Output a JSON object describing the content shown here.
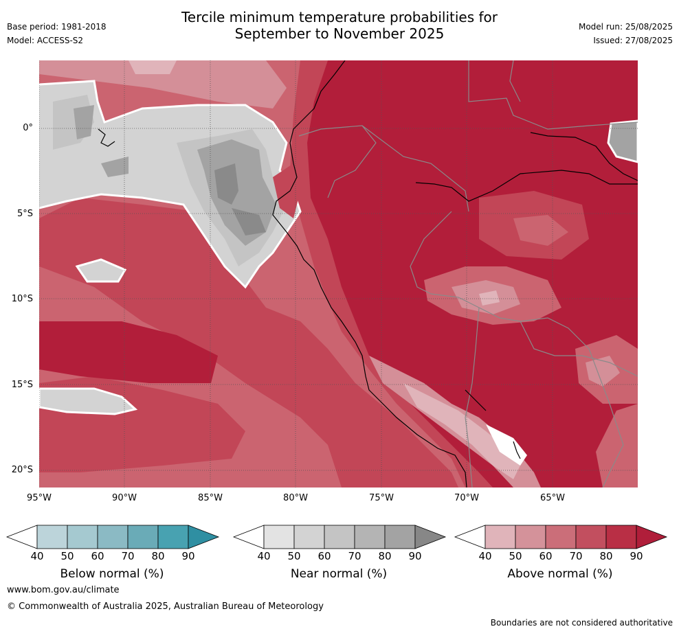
{
  "header": {
    "title_line1": "Tercile minimum temperature probabilities for",
    "title_line2": "September to November 2025",
    "base_period": "Base period: 1981-2018",
    "model": "Model: ACCESS-S2",
    "model_run": "Model run: 25/08/2025",
    "issued": "Issued: 27/08/2025"
  },
  "map": {
    "lat_labels": [
      "0°",
      "5°S",
      "10°S",
      "15°S",
      "20°S"
    ],
    "lon_labels": [
      "95°W",
      "90°W",
      "85°W",
      "80°W",
      "75°W",
      "70°W",
      "65°W"
    ],
    "dominant_category": "above normal",
    "colors": {
      "above_90": "#b21e3a",
      "above_80": "#c24657",
      "above_70": "#cb6470",
      "above_60": "#d48f98",
      "above_50": "#e0b4ba",
      "near_50": "#e3e3e3",
      "near_60": "#d3d3d3",
      "near_70": "#c4c4c4",
      "near_80": "#b4b4b4",
      "near_90": "#a3a3a3",
      "near_max": "#8a8a8a"
    }
  },
  "colorbars": {
    "below": {
      "title": "Below normal (%)",
      "ticks": [
        "40",
        "50",
        "60",
        "70",
        "80",
        "90"
      ],
      "colors": [
        "#ffffff",
        "#bcd4da",
        "#a5c9d0",
        "#8bbac4",
        "#6aabb7",
        "#48a2b1",
        "#2f8fa2"
      ]
    },
    "near": {
      "title": "Near normal (%)",
      "ticks": [
        "40",
        "50",
        "60",
        "70",
        "80",
        "90"
      ],
      "colors": [
        "#ffffff",
        "#e3e3e3",
        "#d3d3d3",
        "#c4c4c4",
        "#b4b4b4",
        "#a3a3a3",
        "#878787"
      ]
    },
    "above": {
      "title": "Above normal (%)",
      "ticks": [
        "40",
        "50",
        "60",
        "70",
        "80",
        "90"
      ],
      "colors": [
        "#ffffff",
        "#e0b4ba",
        "#d4929a",
        "#cb6e79",
        "#c24f5f",
        "#b92f45",
        "#b01e3a"
      ]
    }
  },
  "footer": {
    "url": "www.bom.gov.au/climate",
    "copyright": "© Commonwealth of Australia 2025, Australian Bureau of Meteorology",
    "disclaimer": "Boundaries are not considered authoritative"
  }
}
